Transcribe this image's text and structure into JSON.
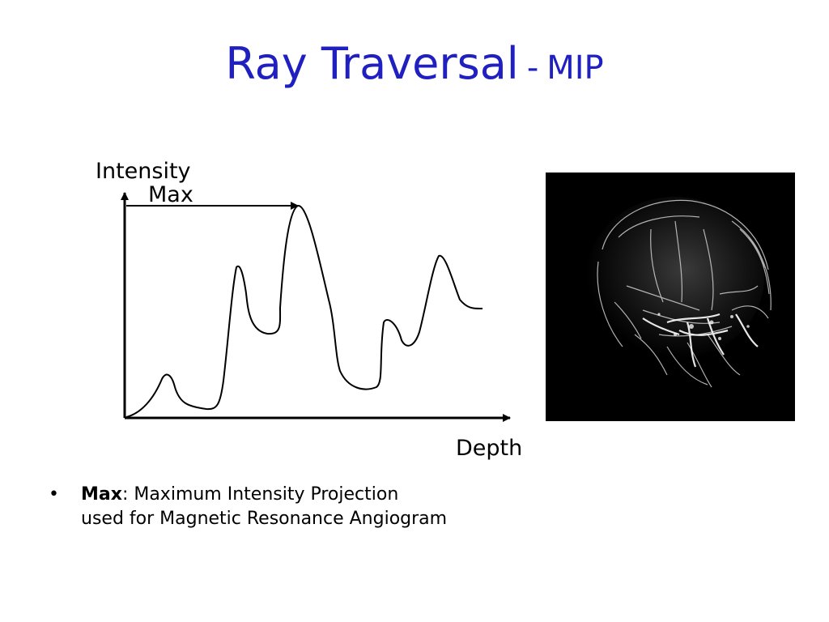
{
  "slide": {
    "title": "Ray Traversal",
    "title_separator": "-",
    "title_suffix": "MIP",
    "title_color": "#2020c0"
  },
  "diagram": {
    "y_axis_label": "Intensity",
    "max_label": "Max",
    "x_axis_label": "Depth"
  },
  "image": {
    "description_icon": "mra-head-scan-image"
  },
  "bullets": [
    {
      "marker": "•",
      "term": "Max",
      "text_line1": ": Maximum Intensity Projection",
      "text_line2": "used for Magnetic Resonance Angiogram"
    }
  ]
}
